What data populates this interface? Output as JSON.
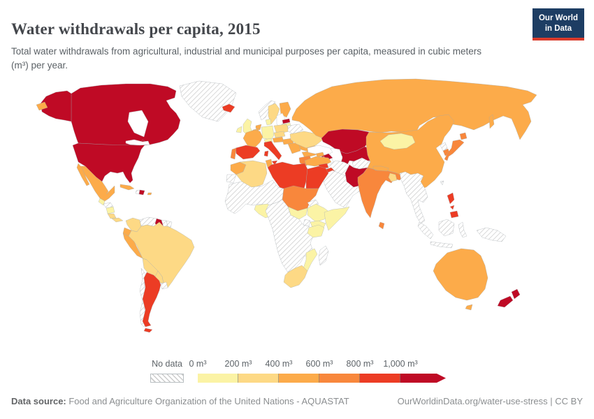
{
  "header": {
    "title": "Water withdrawals per capita, 2015",
    "subtitle": "Total water withdrawals from agricultural, industrial and municipal purposes per capita, measured in cubic meters (m³) per year.",
    "logo": {
      "line1": "Our World",
      "line2": "in Data"
    }
  },
  "legend": {
    "no_data_label": "No data",
    "tick_labels": [
      "0 m³",
      "200 m³",
      "400 m³",
      "600 m³",
      "800 m³",
      "1,000 m³"
    ]
  },
  "footer": {
    "source_label": "Data source:",
    "source_text": " Food and Agriculture Organization of the United Nations - AQUASTAT",
    "link_text": "OurWorldinData.org/water-use-stress | CC BY"
  },
  "colors": {
    "logo_bg": "#1d3d63",
    "logo_stripe": "#d93a2b",
    "bins": {
      "b1": "#fbf3a5",
      "b2": "#fdd985",
      "b3": "#fcab4a",
      "b4": "#f8873c",
      "b5": "#ec3c24",
      "b6": "#bf0a25"
    },
    "border": "#9fa8ac"
  },
  "chart_data": {
    "type": "heatmap",
    "title": "Water withdrawals per capita, 2015",
    "unit": "m³ per year",
    "legend_bins": [
      {
        "bin": "b1",
        "range": "0-200 m³"
      },
      {
        "bin": "b2",
        "range": "200-400 m³"
      },
      {
        "bin": "b3",
        "range": "400-600 m³"
      },
      {
        "bin": "b4",
        "range": "600-800 m³"
      },
      {
        "bin": "b5",
        "range": "800-1,000 m³"
      },
      {
        "bin": "b6",
        "range": "1,000+ m³"
      },
      {
        "bin": "no-data",
        "range": "No data"
      }
    ],
    "regions": [
      {
        "id": "united-states",
        "name": "United States",
        "bin": "b6"
      },
      {
        "id": "canada",
        "name": "Canada",
        "bin": "b6"
      },
      {
        "id": "greenland",
        "name": "Greenland",
        "bin": "no-data"
      },
      {
        "id": "iceland",
        "name": "Iceland",
        "bin": "b5"
      },
      {
        "id": "mexico",
        "name": "Mexico",
        "bin": "b3"
      },
      {
        "id": "guatemala",
        "name": "Guatemala",
        "bin": "b1"
      },
      {
        "id": "honduras",
        "name": "Honduras",
        "bin": "no-data"
      },
      {
        "id": "nicaragua",
        "name": "Nicaragua",
        "bin": "b1"
      },
      {
        "id": "costa-rica",
        "name": "Costa Rica",
        "bin": "b2"
      },
      {
        "id": "panama",
        "name": "Panama",
        "bin": "b2"
      },
      {
        "id": "cuba",
        "name": "Cuba",
        "bin": "b3"
      },
      {
        "id": "haiti",
        "name": "Haiti",
        "bin": "no-data"
      },
      {
        "id": "dominican-republic",
        "name": "Dominican Republic",
        "bin": "b6"
      },
      {
        "id": "puerto-rico",
        "name": "Puerto Rico",
        "bin": "b3"
      },
      {
        "id": "colombia",
        "name": "Colombia",
        "bin": "b2"
      },
      {
        "id": "venezuela",
        "name": "Venezuela",
        "bin": "no-data"
      },
      {
        "id": "guyana",
        "name": "Guyana",
        "bin": "b6"
      },
      {
        "id": "suriname",
        "name": "Suriname",
        "bin": "no-data"
      },
      {
        "id": "french-guiana",
        "name": "French Guiana",
        "bin": "no-data"
      },
      {
        "id": "ecuador",
        "name": "Ecuador",
        "bin": "b3"
      },
      {
        "id": "peru",
        "name": "Peru",
        "bin": "b3"
      },
      {
        "id": "brazil",
        "name": "Brazil",
        "bin": "b2"
      },
      {
        "id": "bolivia",
        "name": "Bolivia",
        "bin": "b2"
      },
      {
        "id": "paraguay",
        "name": "Paraguay",
        "bin": "b2"
      },
      {
        "id": "chile",
        "name": "Chile",
        "bin": "no-data"
      },
      {
        "id": "argentina",
        "name": "Argentina",
        "bin": "b5"
      },
      {
        "id": "uruguay",
        "name": "Uruguay",
        "bin": "no-data"
      },
      {
        "id": "united-kingdom",
        "name": "United Kingdom",
        "bin": "b1"
      },
      {
        "id": "ireland",
        "name": "Ireland",
        "bin": "b1"
      },
      {
        "id": "norway",
        "name": "Norway",
        "bin": "no-data"
      },
      {
        "id": "sweden",
        "name": "Sweden",
        "bin": "b2"
      },
      {
        "id": "finland",
        "name": "Finland",
        "bin": "b3"
      },
      {
        "id": "estonia",
        "name": "Estonia",
        "bin": "b6"
      },
      {
        "id": "latvia",
        "name": "Latvia",
        "bin": "b1"
      },
      {
        "id": "lithuania",
        "name": "Lithuania",
        "bin": "b2"
      },
      {
        "id": "denmark",
        "name": "Denmark",
        "bin": "b1"
      },
      {
        "id": "germany",
        "name": "Germany",
        "bin": "b1"
      },
      {
        "id": "netherlands",
        "name": "Netherlands",
        "bin": "b3"
      },
      {
        "id": "belgium",
        "name": "Belgium",
        "bin": "b3"
      },
      {
        "id": "poland",
        "name": "Poland",
        "bin": "b2"
      },
      {
        "id": "belarus",
        "name": "Belarus",
        "bin": "no-data"
      },
      {
        "id": "czechia",
        "name": "Czechia",
        "bin": "b2"
      },
      {
        "id": "austria",
        "name": "Austria",
        "bin": "b3"
      },
      {
        "id": "switzerland",
        "name": "Switzerland",
        "bin": "b1"
      },
      {
        "id": "hungary",
        "name": "Hungary",
        "bin": "b3"
      },
      {
        "id": "france",
        "name": "France",
        "bin": "b3"
      },
      {
        "id": "spain",
        "name": "Spain",
        "bin": "b5"
      },
      {
        "id": "portugal",
        "name": "Portugal",
        "bin": "b4"
      },
      {
        "id": "italy",
        "name": "Italy",
        "bin": "b5"
      },
      {
        "id": "balkans",
        "name": "Serbia & Balkans",
        "bin": "b3"
      },
      {
        "id": "romania",
        "name": "Romania",
        "bin": "b3"
      },
      {
        "id": "bulgaria",
        "name": "Bulgaria",
        "bin": "b3"
      },
      {
        "id": "greece",
        "name": "Greece",
        "bin": "b4"
      },
      {
        "id": "ukraine",
        "name": "Ukraine",
        "bin": "b2"
      },
      {
        "id": "russia",
        "name": "Russia",
        "bin": "b3"
      },
      {
        "id": "kazakhstan",
        "name": "Kazakhstan",
        "bin": "b6"
      },
      {
        "id": "central-asian-states",
        "name": "Uzbekistan, Turkmenistan, Kyrgyzstan & Tajikistan",
        "bin": "b6"
      },
      {
        "id": "georgia",
        "name": "Georgia",
        "bin": "b3"
      },
      {
        "id": "armenia",
        "name": "Armenia",
        "bin": "b3"
      },
      {
        "id": "azerbaijan",
        "name": "Azerbaijan",
        "bin": "b6"
      },
      {
        "id": "turkey",
        "name": "Turkey",
        "bin": "b3"
      },
      {
        "id": "syria",
        "name": "Syria",
        "bin": "b5"
      },
      {
        "id": "iraq",
        "name": "Iraq",
        "bin": "b5"
      },
      {
        "id": "iran",
        "name": "Iran",
        "bin": "no-data"
      },
      {
        "id": "afghanistan",
        "name": "Afghanistan",
        "bin": "no-data"
      },
      {
        "id": "arabian-peninsula",
        "name": "Arabian Peninsula",
        "bin": "no-data"
      },
      {
        "id": "morocco",
        "name": "Morocco",
        "bin": "b3"
      },
      {
        "id": "western-sahara",
        "name": "Western Sahara",
        "bin": "no-data"
      },
      {
        "id": "algeria",
        "name": "Algeria",
        "bin": "b2"
      },
      {
        "id": "tunisia",
        "name": "Tunisia",
        "bin": "b3"
      },
      {
        "id": "libya",
        "name": "Libya",
        "bin": "b5"
      },
      {
        "id": "egypt",
        "name": "Egypt",
        "bin": "b5"
      },
      {
        "id": "west-africa",
        "name": "Western Africa & Sahel",
        "bin": "no-data"
      },
      {
        "id": "nigeria",
        "name": "Nigeria",
        "bin": "b1"
      },
      {
        "id": "sudan",
        "name": "Sudan",
        "bin": "b4"
      },
      {
        "id": "eritrea",
        "name": "Eritrea",
        "bin": "no-data"
      },
      {
        "id": "south-sudan",
        "name": "South Sudan",
        "bin": "b1"
      },
      {
        "id": "ethiopia",
        "name": "Ethiopia",
        "bin": "b1"
      },
      {
        "id": "somalia",
        "name": "Somalia",
        "bin": "b1"
      },
      {
        "id": "uganda",
        "name": "Uganda",
        "bin": "no-data"
      },
      {
        "id": "kenya",
        "name": "Kenya",
        "bin": "b1"
      },
      {
        "id": "central-southern-africa",
        "name": "Central & Southern Africa",
        "bin": "no-data"
      },
      {
        "id": "tanzania",
        "name": "Tanzania",
        "bin": "b1"
      },
      {
        "id": "mozambique",
        "name": "Mozambique",
        "bin": "b1"
      },
      {
        "id": "south-africa",
        "name": "South Africa",
        "bin": "b2"
      },
      {
        "id": "madagascar",
        "name": "Madagascar",
        "bin": "no-data"
      },
      {
        "id": "pakistan",
        "name": "Pakistan",
        "bin": "b6"
      },
      {
        "id": "india",
        "name": "India",
        "bin": "b4"
      },
      {
        "id": "nepal",
        "name": "Nepal",
        "bin": "b3"
      },
      {
        "id": "bangladesh",
        "name": "Bangladesh",
        "bin": "b2"
      },
      {
        "id": "sri-lanka",
        "name": "Sri Lanka",
        "bin": "b4"
      },
      {
        "id": "china",
        "name": "China",
        "bin": "b3"
      },
      {
        "id": "mongolia",
        "name": "Mongolia",
        "bin": "b1"
      },
      {
        "id": "north-korea",
        "name": "North Korea",
        "bin": "no-data"
      },
      {
        "id": "south-korea",
        "name": "South Korea",
        "bin": "b4"
      },
      {
        "id": "japan",
        "name": "Japan",
        "bin": "b4"
      },
      {
        "id": "taiwan",
        "name": "Taiwan",
        "bin": "no-data"
      },
      {
        "id": "mainland-southeast-asia",
        "name": "Mainland Southeast Asia",
        "bin": "no-data"
      },
      {
        "id": "indonesia",
        "name": "Indonesia & Malaysia",
        "bin": "no-data"
      },
      {
        "id": "papua-new-guinea",
        "name": "Papua New Guinea",
        "bin": "no-data"
      },
      {
        "id": "philippines",
        "name": "Philippines",
        "bin": "b5"
      },
      {
        "id": "australia",
        "name": "Australia",
        "bin": "b3"
      },
      {
        "id": "new-zealand",
        "name": "New Zealand",
        "bin": "b6"
      }
    ]
  }
}
